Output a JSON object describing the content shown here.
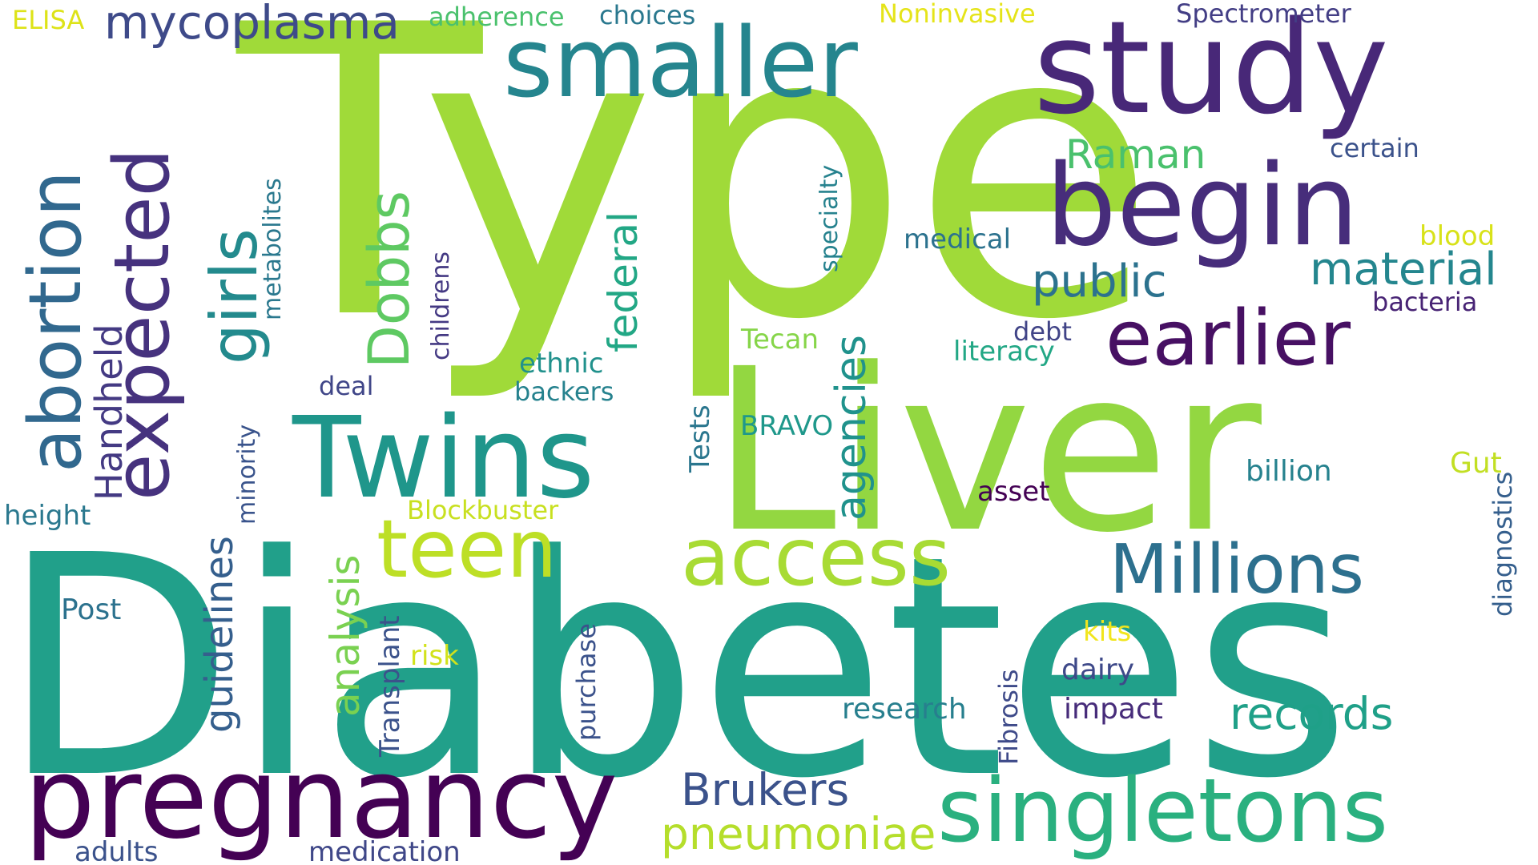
{
  "words": [
    {
      "text": "Type",
      "color": "#a0da39"
    },
    {
      "text": "Diabetes",
      "color": "#21a08a"
    },
    {
      "text": "Liver",
      "color": "#93d741"
    },
    {
      "text": "study",
      "color": "#482878"
    },
    {
      "text": "smaller",
      "color": "#25858e"
    },
    {
      "text": "begin",
      "color": "#472d7b"
    },
    {
      "text": "pregnancy",
      "color": "#440154"
    },
    {
      "text": "singletons",
      "color": "#2ab07f"
    },
    {
      "text": "Twins",
      "color": "#1f968b"
    },
    {
      "text": "access",
      "color": "#a8db34"
    },
    {
      "text": "Millions",
      "color": "#2d708e"
    },
    {
      "text": "earlier",
      "color": "#471063"
    },
    {
      "text": "teen",
      "color": "#bddf26"
    },
    {
      "text": "abortion",
      "color": "#31688e"
    },
    {
      "text": "expected",
      "color": "#46327e"
    },
    {
      "text": "girls",
      "color": "#238a8d"
    },
    {
      "text": "Dobbs",
      "color": "#5ec962"
    },
    {
      "text": "mycoplasma",
      "color": "#3e4a89"
    },
    {
      "text": "public",
      "color": "#2c728e"
    },
    {
      "text": "material",
      "color": "#24868e"
    },
    {
      "text": "records",
      "color": "#1fa088"
    },
    {
      "text": "Brukers",
      "color": "#3b528b"
    },
    {
      "text": "pneumoniae",
      "color": "#b5de2b"
    },
    {
      "text": "Raman",
      "color": "#4ac16d"
    },
    {
      "text": "federal",
      "color": "#22a785"
    },
    {
      "text": "agencies",
      "color": "#20928c"
    },
    {
      "text": "analysis",
      "color": "#7ad151"
    },
    {
      "text": "guidelines",
      "color": "#355f8d"
    },
    {
      "text": "Handheld",
      "color": "#443a83"
    },
    {
      "text": "ELISA",
      "color": "#dde318"
    },
    {
      "text": "adherence",
      "color": "#4ac16d"
    },
    {
      "text": "choices",
      "color": "#2a788e"
    },
    {
      "text": "Noninvasive",
      "color": "#e5e419"
    },
    {
      "text": "Spectrometer",
      "color": "#433e85"
    },
    {
      "text": "certain",
      "color": "#3b528b"
    },
    {
      "text": "medical",
      "color": "#2c728e"
    },
    {
      "text": "blood",
      "color": "#d8e219"
    },
    {
      "text": "bacteria",
      "color": "#482475"
    },
    {
      "text": "debt",
      "color": "#414487"
    },
    {
      "text": "literacy",
      "color": "#22a785"
    },
    {
      "text": "Tecan",
      "color": "#86d549"
    },
    {
      "text": "ethnic",
      "color": "#21918c"
    },
    {
      "text": "backers",
      "color": "#26828e"
    },
    {
      "text": "deal",
      "color": "#404688"
    },
    {
      "text": "BRAVO",
      "color": "#1f988b"
    },
    {
      "text": "billion",
      "color": "#26828e"
    },
    {
      "text": "Gut",
      "color": "#c2df23"
    },
    {
      "text": "asset",
      "color": "#440154"
    },
    {
      "text": "height",
      "color": "#2a788e"
    },
    {
      "text": "Blockbuster",
      "color": "#c8e020"
    },
    {
      "text": "Post",
      "color": "#2c728e"
    },
    {
      "text": "risk",
      "color": "#d2e21b"
    },
    {
      "text": "kits",
      "color": "#f1e51d"
    },
    {
      "text": "dairy",
      "color": "#3e4989"
    },
    {
      "text": "impact",
      "color": "#472c7a"
    },
    {
      "text": "research",
      "color": "#277f8e"
    },
    {
      "text": "adults",
      "color": "#3b528b"
    },
    {
      "text": "medication",
      "color": "#3f4788"
    },
    {
      "text": "metabolites",
      "color": "#2a788e"
    },
    {
      "text": "childrens",
      "color": "#443983"
    },
    {
      "text": "minority",
      "color": "#3a548c"
    },
    {
      "text": "specialty",
      "color": "#26828e"
    },
    {
      "text": "Tests",
      "color": "#2a768e"
    },
    {
      "text": "Transplant",
      "color": "#3b528b"
    },
    {
      "text": "purchase",
      "color": "#3b528b"
    },
    {
      "text": "Fibrosis",
      "color": "#3e4a89"
    },
    {
      "text": "diagnostics",
      "color": "#355f8d"
    }
  ]
}
